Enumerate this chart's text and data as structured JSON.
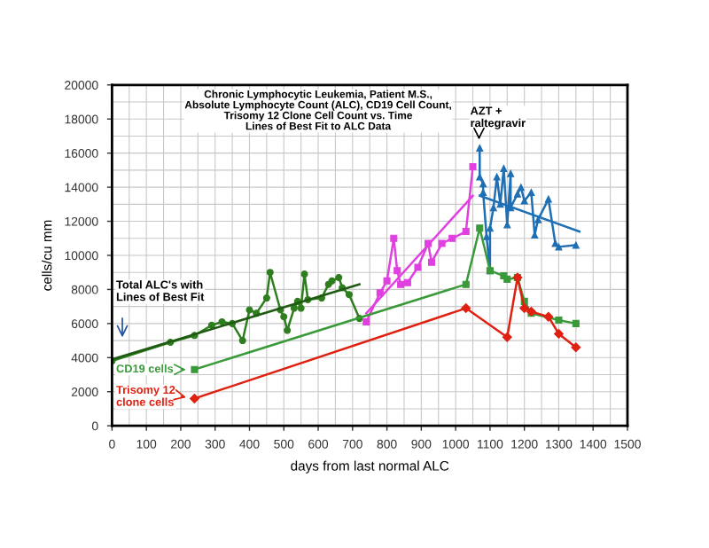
{
  "chart_data": {
    "type": "line",
    "title": "Chronic Lymphocytic Leukemia, Patient M.S.,\nAbsolute Lymphocyte Count (ALC), CD19 Cell Count,\nTrisomy 12 Clone Cell Count vs. Time\nLines of Best Fit to ALC Data",
    "xlabel": "days from last normal ALC",
    "ylabel": "cells/cu mm",
    "xlim": [
      0,
      1500
    ],
    "xticks": [
      0,
      100,
      200,
      300,
      400,
      500,
      600,
      700,
      800,
      900,
      1000,
      1100,
      1200,
      1300,
      1400,
      1500
    ],
    "ylim": [
      0,
      20000
    ],
    "yticks": [
      0,
      2000,
      4000,
      6000,
      8000,
      10000,
      12000,
      14000,
      16000,
      18000,
      20000
    ],
    "grid": true,
    "legend": false,
    "series": [
      {
        "color": "#2e7d1e",
        "marker": "circle",
        "x": [
          0,
          170,
          240,
          290,
          320,
          350,
          380,
          400,
          420,
          450,
          460,
          490,
          500,
          510,
          530,
          540,
          550,
          560,
          570,
          610,
          630,
          640,
          660,
          670,
          690,
          720
        ],
        "values": [
          3800,
          4900,
          5300,
          5900,
          6100,
          6000,
          5000,
          6800,
          6600,
          7500,
          9000,
          6800,
          6400,
          5600,
          6900,
          7300,
          6900,
          8900,
          7400,
          7500,
          8300,
          8500,
          8700,
          8100,
          7700,
          6300
        ]
      },
      {
        "color": "#1f5a12",
        "marker": "none",
        "x": [
          0,
          720
        ],
        "values": [
          3900,
          8300
        ]
      },
      {
        "color": "#e040e0",
        "marker": "square",
        "x": [
          740,
          780,
          800,
          820,
          830,
          840,
          860,
          890,
          920,
          930,
          960,
          990,
          1030,
          1050
        ],
        "values": [
          6100,
          7800,
          8500,
          11000,
          9100,
          8300,
          8400,
          9300,
          10700,
          9600,
          10700,
          11000,
          11400,
          15200
        ]
      },
      {
        "color": "#e040e0",
        "marker": "none",
        "x": [
          740,
          1050
        ],
        "values": [
          6600,
          13500
        ]
      },
      {
        "color": "#1f6fb4",
        "marker": "triangle",
        "x": [
          1070,
          1070,
          1080,
          1080,
          1090,
          1100,
          1100,
          1110,
          1120,
          1130,
          1140,
          1150,
          1160,
          1160,
          1180,
          1190,
          1200,
          1220,
          1230,
          1240,
          1270,
          1290,
          1300,
          1350
        ],
        "values": [
          16300,
          14600,
          14200,
          13700,
          11100,
          9100,
          11600,
          12800,
          14600,
          13000,
          15100,
          11800,
          14800,
          12800,
          13600,
          14000,
          13200,
          13700,
          11200,
          12100,
          13300,
          10700,
          10500,
          10600
        ]
      },
      {
        "color": "#1f6fb4",
        "marker": "none",
        "x": [
          1070,
          1360
        ],
        "values": [
          13500,
          11400
        ]
      },
      {
        "color": "#3a9a3a",
        "marker": "square",
        "x": [
          240,
          1030,
          1070,
          1100,
          1140,
          1150,
          1180,
          1200,
          1220,
          1300,
          1350
        ],
        "values": [
          3300,
          8300,
          11600,
          9100,
          8800,
          8600,
          8700,
          7300,
          6600,
          6200,
          6000
        ]
      },
      {
        "color": "#e02010",
        "marker": "diamond",
        "x": [
          240,
          1030,
          1150,
          1180,
          1200,
          1220,
          1270,
          1300,
          1350
        ],
        "values": [
          1600,
          6900,
          5200,
          8700,
          6900,
          6700,
          6400,
          5400,
          4600
        ]
      }
    ],
    "annotations": [
      "AZT +\nraltegravir",
      "Total ALC's with\nLines of Best Fit",
      "CD19 cells",
      "Trisomy 12\nclone cells"
    ]
  }
}
